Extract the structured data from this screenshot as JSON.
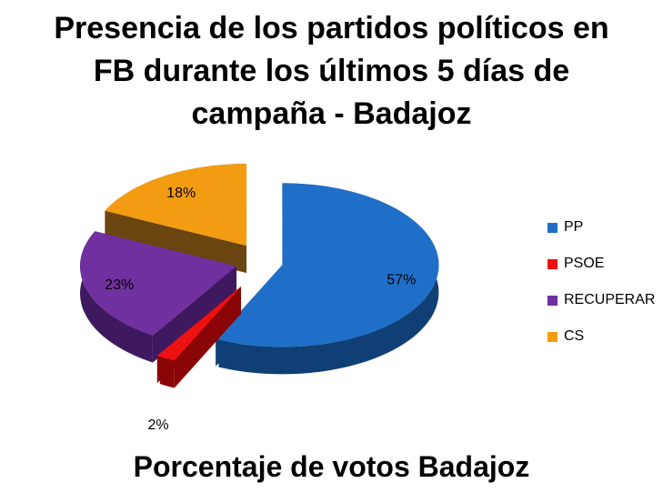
{
  "chart_data": {
    "type": "pie",
    "title_lines": [
      "Presencia de los partidos políticos en",
      "FB durante los últimos 5 días de",
      "campaña - Badajoz"
    ],
    "categories": [
      "PP",
      "PSOE",
      "RECUPERAR",
      "CS"
    ],
    "values": [
      57,
      2,
      23,
      18
    ],
    "data_labels": [
      "57%",
      "2%",
      "23%",
      "18%"
    ],
    "colors": [
      "#1f6fc8",
      "#ee1111",
      "#7030a0",
      "#f39c12"
    ],
    "side_colors": [
      "#103f75",
      "#8a0606",
      "#3f1960",
      "#6b4510"
    ],
    "legend_position": "right",
    "style": "3d-exploded",
    "footer": "Porcentaje de votos Badajoz"
  }
}
